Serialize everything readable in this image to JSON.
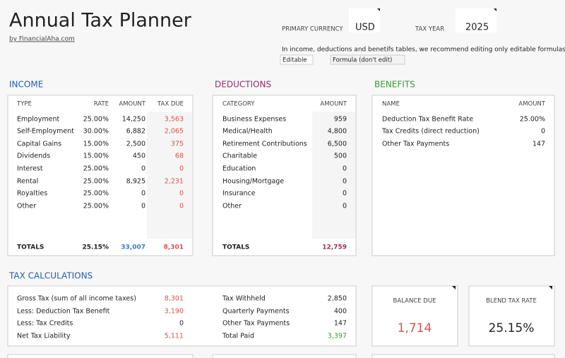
{
  "header": {
    "title": "Annual Tax Planner",
    "byline": "by FinancialAha.com"
  },
  "settings": {
    "currency_label": "PRIMARY CURRENCY",
    "currency": "USD",
    "tax_year_label": "TAX YEAR",
    "tax_year": "2025",
    "note": "In income, deductions and benetifs tables, we recommend editing only editable formulas.",
    "legend_editable": "Editable",
    "legend_formula": "Formula (don't edit)"
  },
  "income": {
    "title": "INCOME",
    "columns": [
      "TYPE",
      "RATE",
      "AMOUNT",
      "TAX DUE"
    ],
    "rows": [
      [
        "Employment",
        "25.00%",
        "14,250",
        "3,563"
      ],
      [
        "Self-Employment",
        "30.00%",
        "6,882",
        "2,065"
      ],
      [
        "Capital Gains",
        "15.00%",
        "2,500",
        "375"
      ],
      [
        "Dividends",
        "15.00%",
        "450",
        "68"
      ],
      [
        "Interest",
        "25.00%",
        "0",
        "0"
      ],
      [
        "Rental",
        "25.00%",
        "8,925",
        "2,231"
      ],
      [
        "Royalties",
        "25.00%",
        "0",
        "0"
      ],
      [
        "Other",
        "25.00%",
        "0",
        "0"
      ]
    ],
    "totals": [
      "TOTALS",
      "25.15%",
      "33,007",
      "8,301"
    ]
  },
  "deductions": {
    "title": "DEDUCTIONS",
    "columns": [
      "CATEGORY",
      "AMOUNT"
    ],
    "rows": [
      [
        "Business Expenses",
        "959"
      ],
      [
        "Medical/Health",
        "4,800"
      ],
      [
        "Retirement Contributions",
        "6,500"
      ],
      [
        "Charitable",
        "500"
      ],
      [
        "Education",
        "0"
      ],
      [
        "Housing/Mortgage",
        "0"
      ],
      [
        "Insurance",
        "0"
      ],
      [
        "Other",
        "0"
      ]
    ],
    "totals": [
      "TOTALS",
      "12,759"
    ]
  },
  "benefits": {
    "title": "BENEFITS",
    "columns": [
      "NAME",
      "AMOUNT"
    ],
    "rows": [
      [
        "Deduction Tax Benefit Rate",
        "25.00%"
      ],
      [
        "Tax Credits (direct reduction)",
        "0"
      ],
      [
        "Other Tax Payments",
        "147"
      ]
    ]
  },
  "tax_calculations": {
    "title": "TAX CALCULATIONS",
    "left_rows": [
      [
        "Gross Tax (sum of all income taxes)",
        "8,301"
      ],
      [
        "Less: Deduction Tax Benefit",
        "3,190"
      ],
      [
        "Less: Tax Credits",
        "0"
      ],
      [
        "Net Tax Liability",
        "5,111"
      ]
    ],
    "right_rows": [
      [
        "Tax Withheld",
        "2,850"
      ],
      [
        "Quarterly Payments",
        "400"
      ],
      [
        "Other Tax Payments",
        "147"
      ],
      [
        "Total Paid",
        "3,397"
      ]
    ]
  },
  "balance_due": {
    "label": "BALANCE DUE",
    "value": "1,714"
  },
  "blend_tax_rate": {
    "label": "BLEND TAX RATE",
    "value": "25.15%"
  }
}
